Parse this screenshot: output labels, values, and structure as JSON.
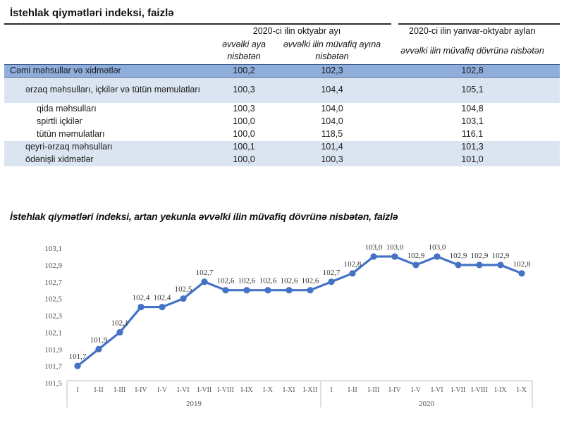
{
  "page": {
    "title": "İstehlak qiymətləri indeksi, faizlə"
  },
  "table": {
    "col_groups": [
      {
        "label": "2020-ci ilin oktyabr ayı"
      },
      {
        "label": "2020-ci ilin yanvar-oktyabr ayları"
      }
    ],
    "sub_headers": [
      "əvvəlki aya nisbətən",
      "əvvəlki ilin müvafiq ayına nisbətən",
      "əvvəlki ilin müvafiq dövrünə nisbətən"
    ],
    "rows": [
      {
        "label": "Cəmi məhsullar və xidmətlər",
        "values": [
          "100,2",
          "102,3",
          "102,8"
        ],
        "style": "total",
        "indent": 0,
        "lines": 1
      },
      {
        "label": "ərzaq məhsulları, içkilər və tütün məmulatları",
        "values": [
          "100,3",
          "104,4",
          "105,1"
        ],
        "style": "group",
        "indent": 1,
        "lines": 2
      },
      {
        "label": "qida məhsulları",
        "values": [
          "100,3",
          "104,0",
          "104,8"
        ],
        "style": "sub",
        "indent": 2,
        "lines": 1
      },
      {
        "label": "spirtli içkilər",
        "values": [
          "100,0",
          "104,0",
          "103,1"
        ],
        "style": "sub",
        "indent": 2,
        "lines": 1
      },
      {
        "label": "tütün məmulatları",
        "values": [
          "100,0",
          "118,5",
          "116,1"
        ],
        "style": "sub",
        "indent": 2,
        "lines": 1
      },
      {
        "label": "qeyri-ərzaq məhsulları",
        "values": [
          "100,1",
          "101,4",
          "101,3"
        ],
        "style": "group",
        "indent": 1,
        "lines": 1
      },
      {
        "label": "ödənişli xidmətlər",
        "values": [
          "100,0",
          "100,3",
          "101,0"
        ],
        "style": "group",
        "indent": 1,
        "lines": 1
      }
    ]
  },
  "chart": {
    "title": "İstehlak qiymətləri indeksi, artan yekunla əvvəlki ilin müvafiq dövrünə nisbətən, faizlə"
  },
  "chart_data": {
    "type": "line",
    "title": "İstehlak qiymətləri indeksi, artan yekunla əvvəlki ilin müvafiq dövrünə nisbətən, faizlə",
    "x": [
      "I",
      "I-II",
      "I-III",
      "I-IV",
      "I-V",
      "I-VI",
      "I-VII",
      "I-VIII",
      "I-IX",
      "I-X",
      "I-XI",
      "I-XII",
      "I",
      "I-II",
      "I-III",
      "I-IV",
      "I-V",
      "I-VI",
      "I-VII",
      "I-VIII",
      "I-IX",
      "I-X"
    ],
    "x_groups": [
      {
        "label": "2019",
        "count": 12
      },
      {
        "label": "2020",
        "count": 10
      }
    ],
    "values": [
      101.7,
      101.9,
      102.1,
      102.4,
      102.4,
      102.5,
      102.7,
      102.6,
      102.6,
      102.6,
      102.6,
      102.6,
      102.7,
      102.8,
      103.0,
      103.0,
      102.9,
      103.0,
      102.9,
      102.9,
      102.9,
      102.8
    ],
    "point_labels": [
      "101,7",
      "101,9",
      "102,1",
      "102,4",
      "102,4",
      "102,5",
      "102,7",
      "102,6",
      "102,6",
      "102,6",
      "102,6",
      "102,6",
      "102,7",
      "102,8",
      "103,0",
      "103,0",
      "102,9",
      "103,0",
      "102,9",
      "102,9",
      "102,9",
      "102,8"
    ],
    "y_ticks": [
      "103,1",
      "102,9",
      "102,7",
      "102,5",
      "102,3",
      "102,1",
      "101,9",
      "101,7",
      "101,5"
    ],
    "ylim": [
      101.5,
      103.1
    ],
    "xlabel": "",
    "ylabel": "",
    "grid": false,
    "legend": "none",
    "line_color": "#4472C4",
    "axis_color": "#BFBFBF"
  }
}
